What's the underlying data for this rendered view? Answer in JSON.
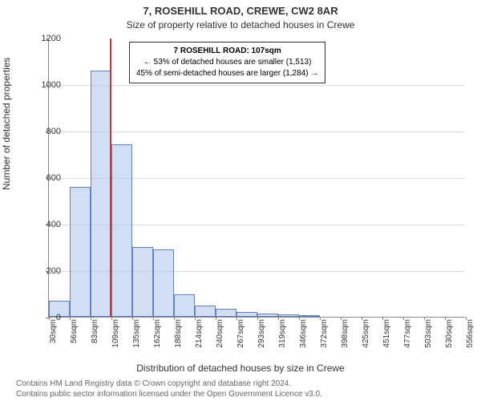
{
  "title_main": "7, ROSEHILL ROAD, CREWE, CW2 8AR",
  "title_sub": "Size of property relative to detached houses in Crewe",
  "ylabel": "Number of detached properties",
  "xlabel": "Distribution of detached houses by size in Crewe",
  "footer_line1": "Contains HM Land Registry data © Crown copyright and database right 2024.",
  "footer_line2": "Contains public sector information licensed under the Open Government Licence v3.0.",
  "annotation": {
    "line1": "7 ROSEHILL ROAD: 107sqm",
    "line2": "← 53% of detached houses are smaller (1,513)",
    "line3": "45% of semi-detached houses are larger (1,284) →"
  },
  "chart": {
    "type": "histogram",
    "ylim": [
      0,
      1200
    ],
    "ytick_step": 200,
    "yticks": [
      0,
      200,
      400,
      600,
      800,
      1000,
      1200
    ],
    "xtick_labels": [
      "30sqm",
      "56sqm",
      "83sqm",
      "109sqm",
      "135sqm",
      "162sqm",
      "188sqm",
      "214sqm",
      "240sqm",
      "267sqm",
      "293sqm",
      "319sqm",
      "346sqm",
      "372sqm",
      "398sqm",
      "425sqm",
      "451sqm",
      "477sqm",
      "503sqm",
      "530sqm",
      "556sqm"
    ],
    "bar_values": [
      70,
      560,
      1060,
      740,
      300,
      290,
      95,
      50,
      35,
      20,
      15,
      10,
      5,
      0,
      0,
      0,
      0,
      0,
      0,
      0
    ],
    "bar_fill": "rgba(180, 200, 235, 0.6)",
    "bar_border": "#6080c0",
    "ref_line_position": 107,
    "ref_line_color": "#cc3333",
    "x_range": [
      30,
      556
    ],
    "grid_color": "#ddd",
    "background": "#ffffff",
    "title_fontsize": 13,
    "sub_fontsize": 12,
    "label_fontsize": 12,
    "tick_fontsize": 11,
    "annotation_fontsize": 10
  }
}
